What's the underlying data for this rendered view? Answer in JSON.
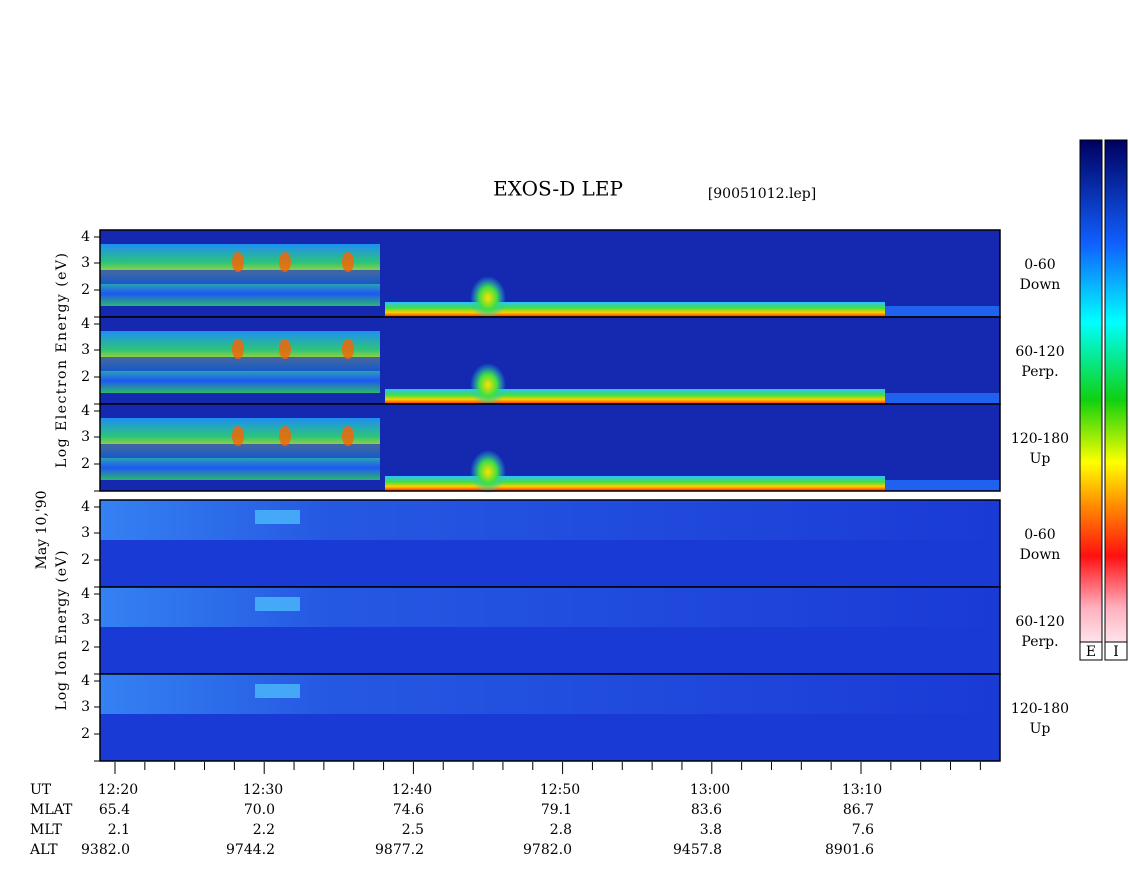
{
  "title": "EXOS-D LEP",
  "file": "[90051012.lep]",
  "date": "May 10,'90",
  "electron": {
    "axis_label": "Log Electron Energy (eV)",
    "panels": [
      {
        "ticks": [
          "4",
          "3",
          "2"
        ],
        "label": [
          "0-60",
          "Down"
        ]
      },
      {
        "ticks": [
          "4",
          "3",
          "2"
        ],
        "label": [
          "60-120",
          "Perp."
        ]
      },
      {
        "ticks": [
          "4",
          "3",
          "2"
        ],
        "label": [
          "120-180",
          "Up"
        ]
      }
    ]
  },
  "ion": {
    "axis_label": "Log Ion Energy (eV)",
    "panels": [
      {
        "ticks": [
          "4",
          "3",
          "2"
        ],
        "label": [
          "0-60",
          "Down"
        ]
      },
      {
        "ticks": [
          "4",
          "3",
          "2"
        ],
        "label": [
          "60-120",
          "Perp."
        ]
      },
      {
        "ticks": [
          "4",
          "3",
          "2"
        ],
        "label": [
          "120-180",
          "Up"
        ]
      }
    ]
  },
  "colorbars": [
    "E",
    "I"
  ],
  "table": {
    "rows": [
      [
        "UT",
        "12:20",
        "12:30",
        "12:40",
        "12:50",
        "13:00",
        "13:10"
      ],
      [
        "MLAT",
        "65.4",
        "70.0",
        "74.6",
        "79.1",
        "83.6",
        "86.7"
      ],
      [
        "MLT",
        "2.1",
        "2.2",
        "2.5",
        "2.8",
        "3.8",
        "7.6"
      ],
      [
        "ALT",
        "9382.0",
        "9744.2",
        "9877.2",
        "9782.0",
        "9457.8",
        "8901.6"
      ]
    ]
  }
}
